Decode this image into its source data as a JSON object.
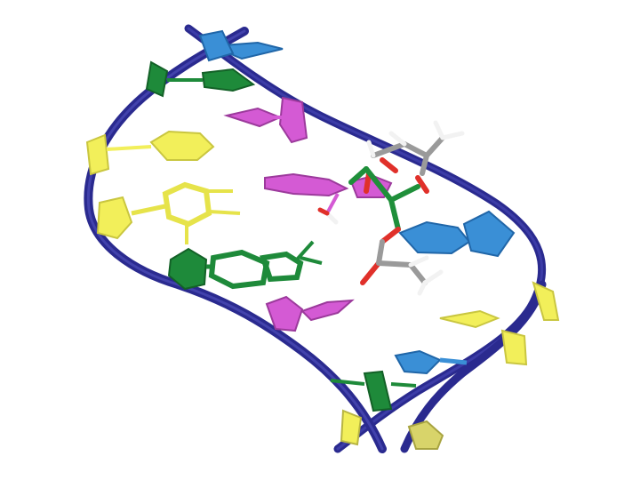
{
  "image": {
    "subject": "dna-double-helix-with-bound-ligand",
    "render_style": "cartoon-ribbon-and-stick"
  },
  "colors": {
    "backbone": "#2a2a8f",
    "backbone_light": "#4a4ab8",
    "base_yellow": "#f2ef5a",
    "base_yellow_stroke": "#c9c640",
    "base_green": "#1e8a3a",
    "base_green_stroke": "#136127",
    "base_magenta": "#d45ad4",
    "base_magenta_stroke": "#9c3a9c",
    "base_blue": "#3a8fd6",
    "base_blue_stroke": "#2066a8",
    "ligand_carbon": "#9a9a9a",
    "ligand_green": "#1f8f3a",
    "ligand_oxygen": "#e0302a",
    "ligand_hydrogen": "#f2f2f2",
    "background": "#ffffff"
  },
  "icons": [
    "dna-backbone-ribbon",
    "base-pair-slabs",
    "ligand-stick-model"
  ]
}
